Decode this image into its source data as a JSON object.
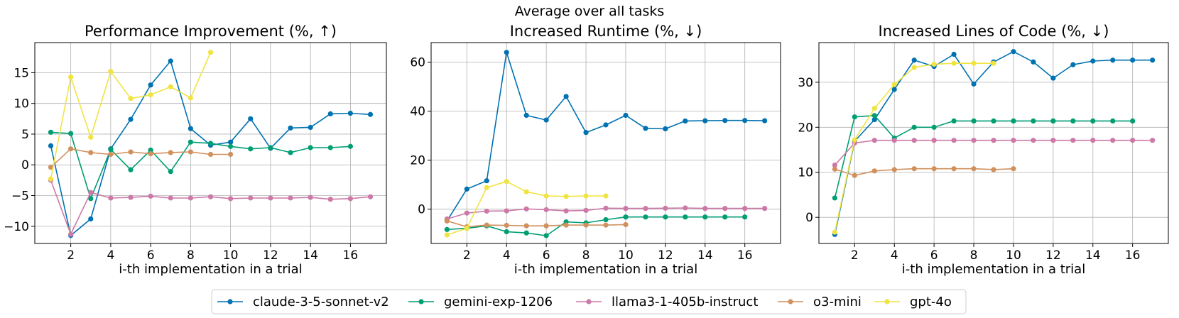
{
  "figure_title": "Average over all tasks",
  "chart_data": [
    {
      "type": "line",
      "title": "Performance Improvement (%, ↑)",
      "xlabel": "i-th implementation in a trial",
      "ylabel": "",
      "xlim": [
        0.2,
        17.8
      ],
      "ylim": [
        -12.8,
        19.9
      ],
      "xticks": [
        2,
        4,
        6,
        8,
        10,
        12,
        14,
        16
      ],
      "yticks": [
        -10,
        -5,
        0,
        5,
        10,
        15
      ],
      "grid": true,
      "series": [
        {
          "name": "claude-3-5-sonnet-v2",
          "x": [
            1,
            2,
            3,
            4,
            5,
            6,
            7,
            8,
            9,
            10,
            11,
            12,
            13,
            14,
            15,
            16,
            17
          ],
          "y": [
            3.1,
            -11.5,
            -8.8,
            2.6,
            7.4,
            13.0,
            16.9,
            5.9,
            3.2,
            3.7,
            7.5,
            2.7,
            6.0,
            6.1,
            8.3,
            8.4,
            8.2
          ]
        },
        {
          "name": "gemini-exp-1206",
          "x": [
            1,
            2,
            3,
            4,
            5,
            6,
            7,
            8,
            9,
            10,
            11,
            12,
            13,
            14,
            15,
            16
          ],
          "y": [
            5.3,
            5.1,
            -5.5,
            2.5,
            -0.8,
            2.4,
            -1.1,
            3.7,
            3.5,
            3.0,
            2.6,
            2.8,
            2.0,
            2.8,
            2.8,
            3.0
          ]
        },
        {
          "name": "llama3-1-405b-instruct",
          "x": [
            1,
            2,
            3,
            4,
            5,
            6,
            7,
            8,
            9,
            10,
            11,
            12,
            13,
            14,
            15,
            16,
            17
          ],
          "y": [
            -2.5,
            -11.3,
            -4.5,
            -5.4,
            -5.3,
            -5.1,
            -5.4,
            -5.4,
            -5.2,
            -5.5,
            -5.4,
            -5.4,
            -5.4,
            -5.3,
            -5.6,
            -5.5,
            -5.2
          ]
        },
        {
          "name": "o3-mini",
          "x": [
            1,
            2,
            3,
            4,
            5,
            6,
            7,
            8,
            9,
            10
          ],
          "y": [
            -0.4,
            2.6,
            2.0,
            1.7,
            2.1,
            1.8,
            2.0,
            2.1,
            1.7,
            1.7
          ]
        },
        {
          "name": "gpt-4o",
          "x": [
            1,
            2,
            3,
            4,
            5,
            6,
            7,
            8,
            9
          ],
          "y": [
            -2.3,
            14.3,
            4.5,
            15.2,
            10.8,
            11.4,
            12.7,
            10.9,
            18.3
          ]
        }
      ]
    },
    {
      "type": "line",
      "title": "Increased Runtime (%, ↓)",
      "xlabel": "i-th implementation in a trial",
      "ylabel": "",
      "xlim": [
        0.2,
        17.8
      ],
      "ylim": [
        -14,
        68
      ],
      "xticks": [
        2,
        4,
        6,
        8,
        10,
        12,
        14,
        16
      ],
      "yticks": [
        0,
        20,
        40,
        60
      ],
      "grid": true,
      "series": [
        {
          "name": "claude-3-5-sonnet-v2",
          "x": [
            1,
            2,
            3,
            4,
            5,
            6,
            7,
            8,
            9,
            10,
            11,
            12,
            13,
            14,
            15,
            16,
            17
          ],
          "y": [
            -4.8,
            8.2,
            11.6,
            64.0,
            38.3,
            36.4,
            46.0,
            31.3,
            34.4,
            38.3,
            33.0,
            32.8,
            36.0,
            36.1,
            36.2,
            36.2,
            36.1
          ]
        },
        {
          "name": "gemini-exp-1206",
          "x": [
            1,
            2,
            3,
            4,
            5,
            6,
            7,
            8,
            9,
            10,
            11,
            12,
            13,
            14,
            15,
            16
          ],
          "y": [
            -8.3,
            -7.8,
            -6.8,
            -9.2,
            -9.7,
            -10.8,
            -5.2,
            -5.6,
            -4.3,
            -3.2,
            -3.2,
            -3.2,
            -3.2,
            -3.2,
            -3.2,
            -3.2
          ]
        },
        {
          "name": "llama3-1-405b-instruct",
          "x": [
            1,
            2,
            3,
            4,
            5,
            6,
            7,
            8,
            9,
            10,
            11,
            12,
            13,
            14,
            15,
            16,
            17
          ],
          "y": [
            -4.0,
            -1.6,
            -0.8,
            -0.7,
            0.1,
            -0.2,
            -0.7,
            -0.5,
            0.4,
            0.3,
            0.3,
            0.4,
            0.5,
            0.3,
            0.3,
            0.3,
            0.3
          ]
        },
        {
          "name": "o3-mini",
          "x": [
            1,
            2,
            3,
            4,
            5,
            6,
            7,
            8,
            9,
            10
          ],
          "y": [
            -4.8,
            -7.2,
            -6.5,
            -6.6,
            -6.8,
            -6.8,
            -6.5,
            -6.5,
            -6.5,
            -6.3
          ]
        },
        {
          "name": "gpt-4o",
          "x": [
            1,
            2,
            3,
            4,
            5,
            6,
            7,
            8,
            9
          ],
          "y": [
            -10.5,
            -7.8,
            8.8,
            11.3,
            7.1,
            5.4,
            5.2,
            5.4,
            5.4
          ]
        }
      ]
    },
    {
      "type": "line",
      "title": "Increased Lines of Code (%, ↓)",
      "xlabel": "i-th implementation in a trial",
      "ylabel": "",
      "xlim": [
        0.2,
        17.8
      ],
      "ylim": [
        -5.8,
        38.8
      ],
      "xticks": [
        2,
        4,
        6,
        8,
        10,
        12,
        14,
        16
      ],
      "yticks": [
        0,
        10,
        20,
        30
      ],
      "grid": true,
      "series": [
        {
          "name": "claude-3-5-sonnet-v2",
          "x": [
            1,
            2,
            3,
            4,
            5,
            6,
            7,
            8,
            9,
            10,
            11,
            12,
            13,
            14,
            15,
            16,
            17
          ],
          "y": [
            -3.8,
            16.9,
            21.7,
            28.4,
            34.9,
            33.5,
            36.2,
            29.6,
            34.5,
            36.8,
            34.5,
            30.9,
            33.9,
            34.7,
            34.9,
            34.9,
            34.9
          ]
        },
        {
          "name": "gemini-exp-1206",
          "x": [
            1,
            2,
            3,
            4,
            5,
            6,
            7,
            8,
            9,
            10,
            11,
            12,
            13,
            14,
            15,
            16
          ],
          "y": [
            4.3,
            22.3,
            22.6,
            17.6,
            20.0,
            20.0,
            21.4,
            21.4,
            21.4,
            21.4,
            21.4,
            21.4,
            21.4,
            21.4,
            21.4,
            21.4
          ]
        },
        {
          "name": "llama3-1-405b-instruct",
          "x": [
            1,
            2,
            3,
            4,
            5,
            6,
            7,
            8,
            9,
            10,
            11,
            12,
            13,
            14,
            15,
            16,
            17
          ],
          "y": [
            11.6,
            16.5,
            17.1,
            17.1,
            17.1,
            17.1,
            17.1,
            17.1,
            17.1,
            17.1,
            17.1,
            17.1,
            17.1,
            17.1,
            17.1,
            17.1,
            17.1
          ]
        },
        {
          "name": "o3-mini",
          "x": [
            1,
            2,
            3,
            4,
            5,
            6,
            7,
            8,
            9,
            10
          ],
          "y": [
            10.7,
            9.3,
            10.3,
            10.6,
            10.8,
            10.8,
            10.8,
            10.8,
            10.6,
            10.8
          ]
        },
        {
          "name": "gpt-4o",
          "x": [
            1,
            2,
            3,
            4,
            5,
            6,
            7,
            8,
            9
          ],
          "y": [
            -3.3,
            17.2,
            24.2,
            29.5,
            33.3,
            34.0,
            34.2,
            34.2,
            34.2
          ]
        }
      ]
    }
  ],
  "legend": {
    "placement": "bottom-center",
    "entries": [
      "claude-3-5-sonnet-v2",
      "gemini-exp-1206",
      "llama3-1-405b-instruct",
      "o3-mini",
      "gpt-4o"
    ]
  },
  "colors": {
    "claude-3-5-sonnet-v2": "#0072b2",
    "gemini-exp-1206": "#009e73",
    "llama3-1-405b-instruct": "#cc79a7",
    "o3-mini": "#d0915e",
    "gpt-4o": "#f0e442"
  }
}
